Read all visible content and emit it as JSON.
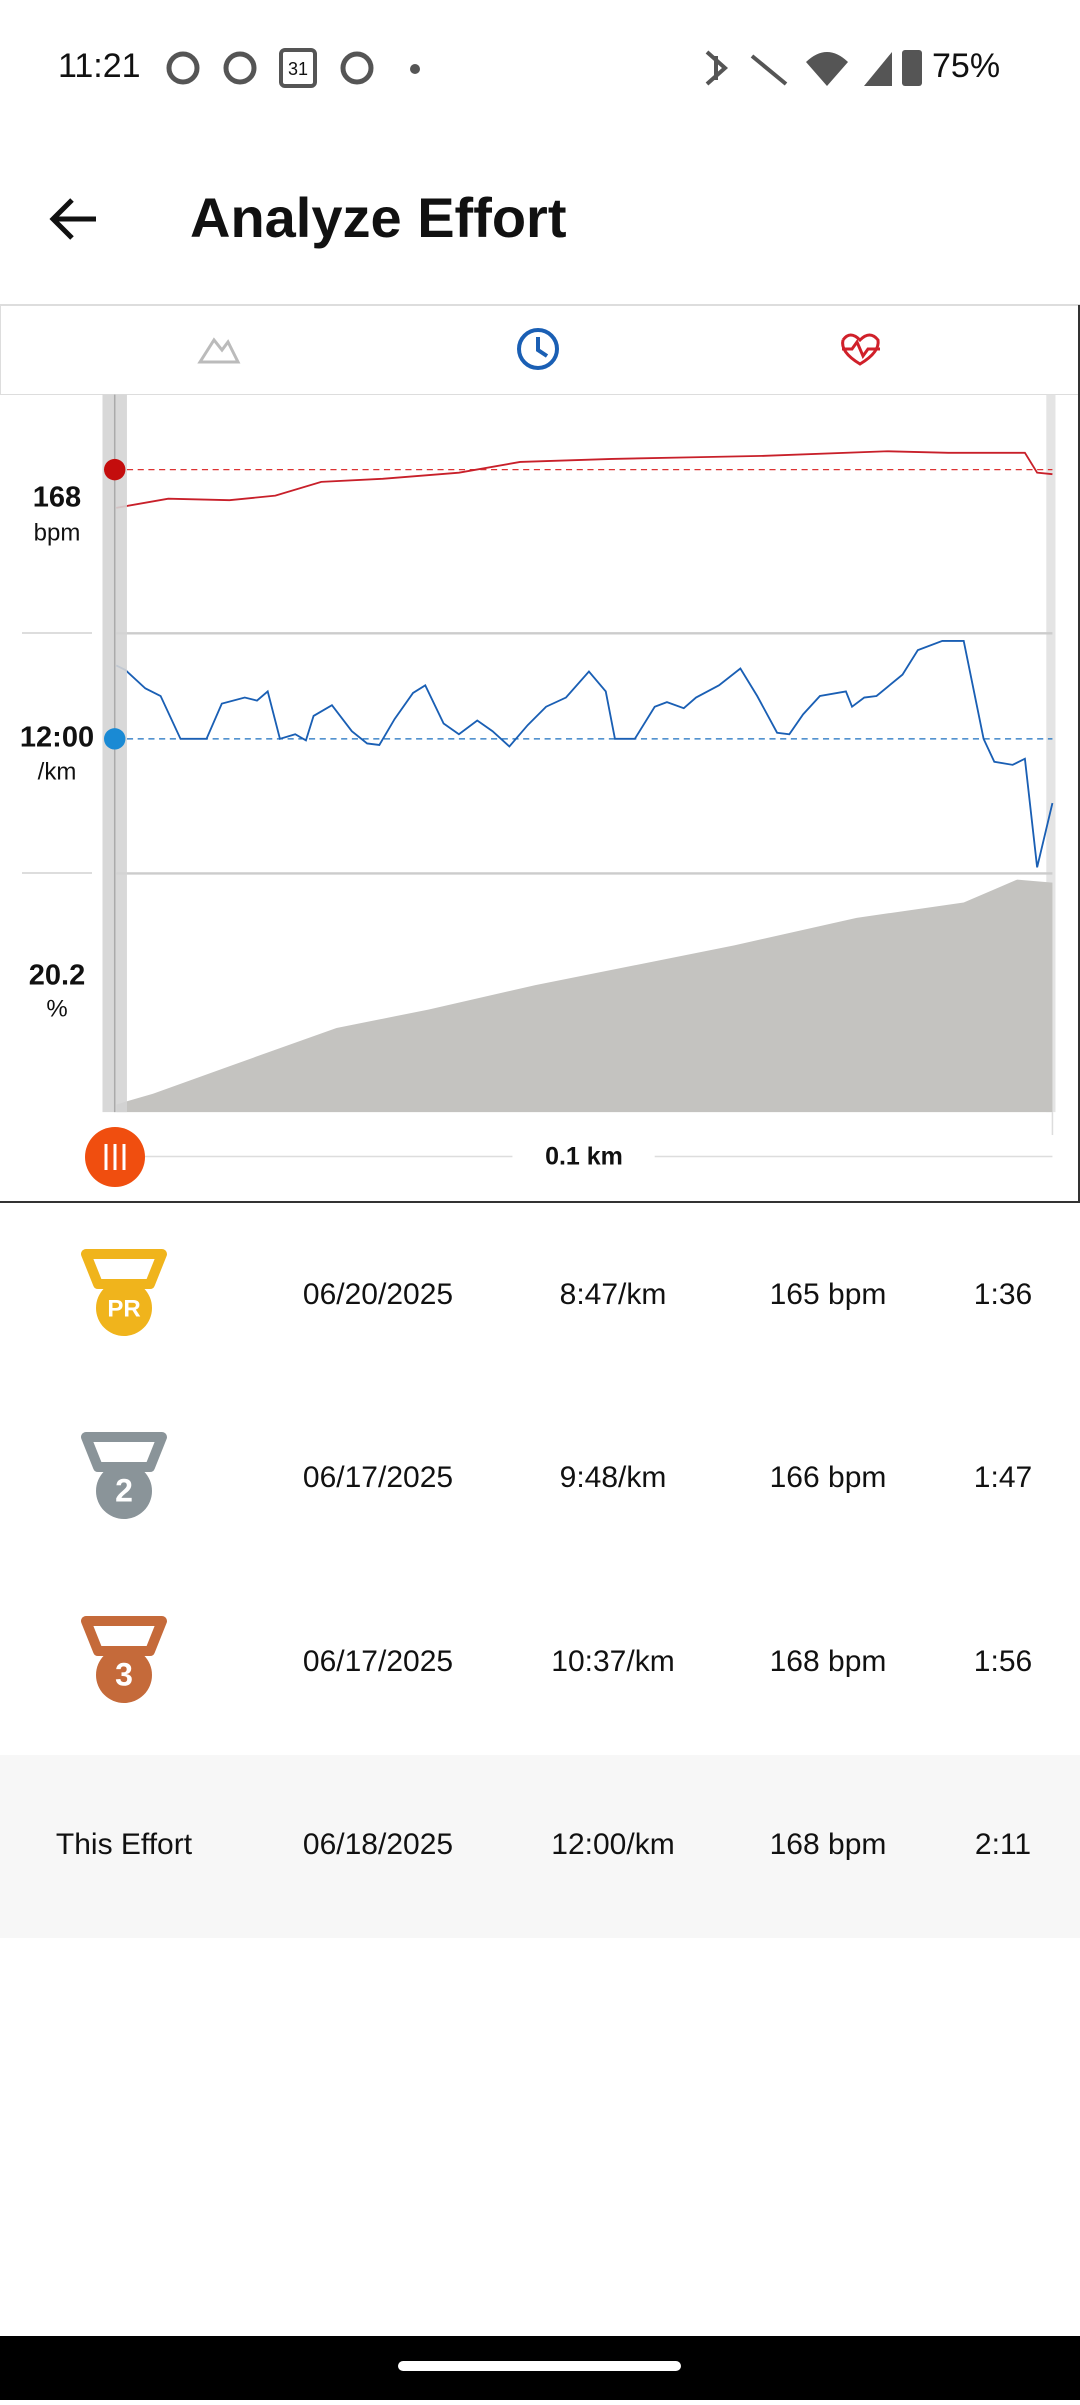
{
  "status_bar": {
    "time": "11:21",
    "calendar_day": "31",
    "battery": "75%"
  },
  "header": {
    "title": "Analyze Effort"
  },
  "chart": {
    "labels": [
      {
        "value": "168",
        "unit": "bpm"
      },
      {
        "value": "12:00",
        "unit": "/km"
      },
      {
        "value": "20.2",
        "unit": "%"
      }
    ],
    "distance": "0.1 km"
  },
  "table": {
    "rows": [
      {
        "badge": "PR",
        "date": "06/20/2025",
        "pace": "8:47/km",
        "heart_rate": "165 bpm",
        "time": "1:36"
      },
      {
        "badge": "2",
        "date": "06/17/2025",
        "pace": "9:48/km",
        "heart_rate": "166 bpm",
        "time": "1:47"
      },
      {
        "badge": "3",
        "date": "06/17/2025",
        "pace": "10:37/km",
        "heart_rate": "168 bpm",
        "time": "1:56"
      },
      {
        "label": "This Effort",
        "date": "06/18/2025",
        "pace": "12:00/km",
        "heart_rate": "168 bpm",
        "time": "2:11"
      }
    ]
  }
}
